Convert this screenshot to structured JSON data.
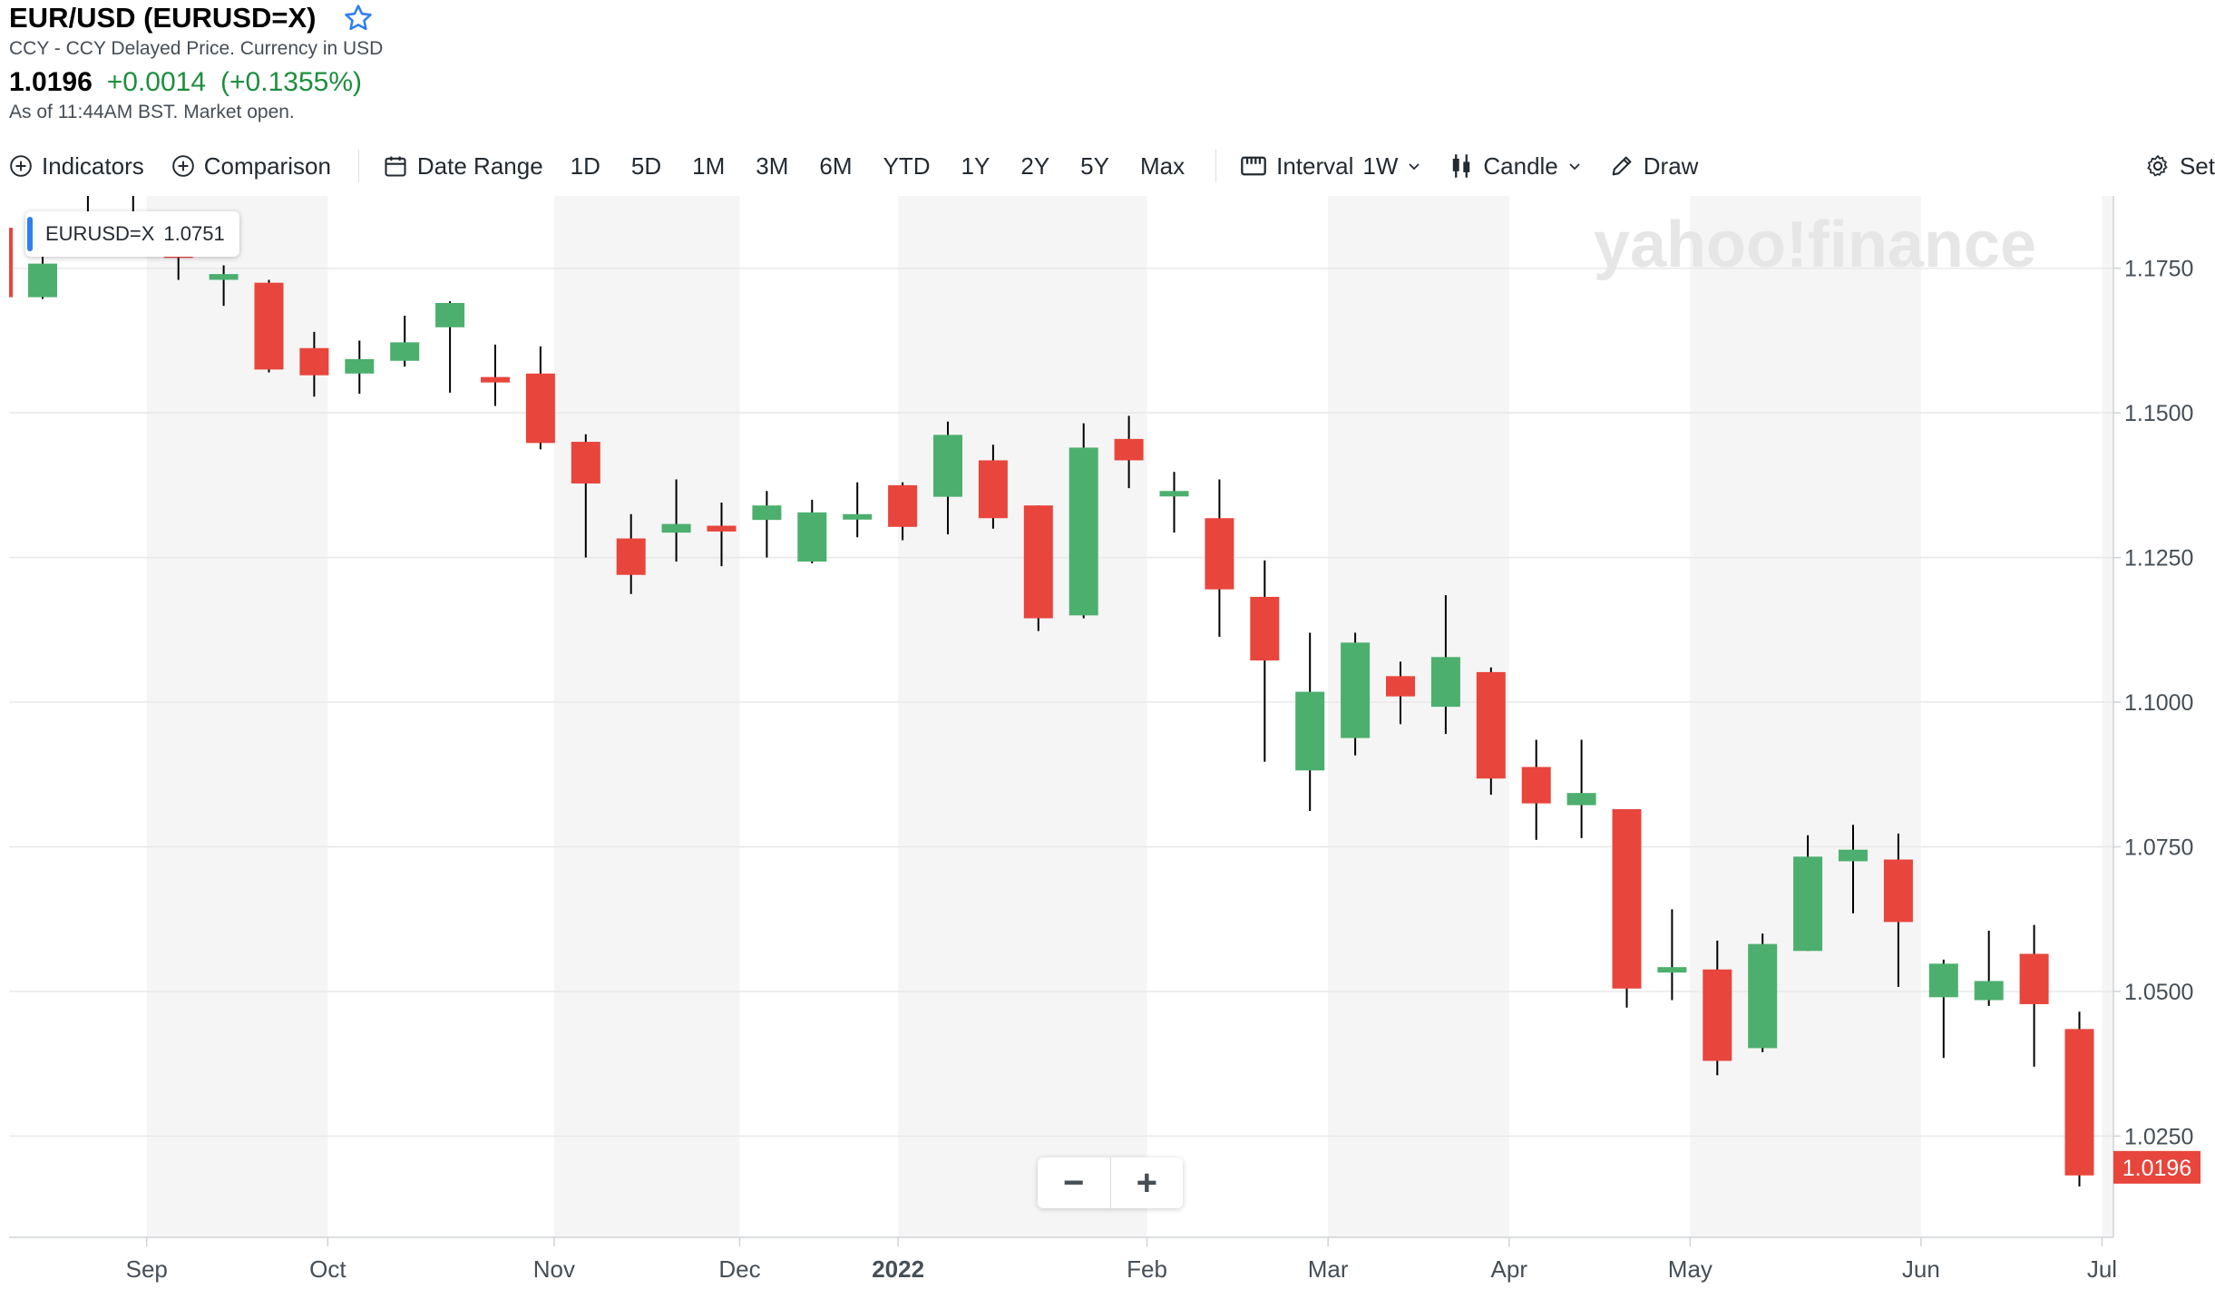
{
  "header": {
    "title": "EUR/USD (EURUSD=X)",
    "subtitle": "CCY - CCY Delayed Price. Currency in USD",
    "price": "1.0196",
    "change": "+0.0014",
    "change_pct": "(+0.1355%)",
    "as_of": "As of 11:44AM BST. Market open."
  },
  "toolbar": {
    "indicators": "Indicators",
    "comparison": "Comparison",
    "date_range": "Date Range",
    "ranges": [
      "1D",
      "5D",
      "1M",
      "3M",
      "6M",
      "YTD",
      "1Y",
      "2Y",
      "5Y",
      "Max"
    ],
    "interval_label": "Interval",
    "interval_value": "1W",
    "chart_type": "Candle",
    "draw": "Draw",
    "settings": "Set"
  },
  "tooltip": {
    "symbol": "EURUSD=X",
    "value": "1.0751"
  },
  "watermark": "yahoo!finance",
  "zoom": {
    "minus": "−",
    "plus": "+"
  },
  "colors": {
    "up": "#4caf6e",
    "down": "#e8453c",
    "grid": "#e8e8e8",
    "band": "#f5f5f5",
    "accent": "#2f7ef3"
  },
  "chart_data": {
    "type": "candlestick",
    "title": "EUR/USD (EURUSD=X)",
    "interval": "1W",
    "ylim": [
      1.0075,
      1.1875
    ],
    "y_ticks": [
      1.025,
      1.05,
      1.075,
      1.1,
      1.125,
      1.15,
      1.175
    ],
    "y_tick_labels": [
      "1.0250",
      "1.0500",
      "1.0750",
      "1.1000",
      "1.1250",
      "1.1500",
      "1.1750"
    ],
    "last_price_label": "1.0196",
    "last_price": 1.0196,
    "x_labels": [
      {
        "label": "Sep",
        "index": 2.3
      },
      {
        "label": "Oct",
        "index": 6.3
      },
      {
        "label": "Nov",
        "index": 11.3
      },
      {
        "label": "Dec",
        "index": 15.4
      },
      {
        "label": "2022",
        "index": 18.9
      },
      {
        "label": "Feb",
        "index": 24.4
      },
      {
        "label": "Mar",
        "index": 28.4
      },
      {
        "label": "Apr",
        "index": 32.4
      },
      {
        "label": "May",
        "index": 36.4
      },
      {
        "label": "Jun",
        "index": 41.5
      },
      {
        "label": "Jul",
        "index": 45.5
      }
    ],
    "month_bands": [
      [
        2.3,
        6.3
      ],
      [
        11.3,
        15.4
      ],
      [
        18.9,
        24.4
      ],
      [
        28.4,
        32.4
      ],
      [
        36.4,
        41.5
      ],
      [
        45.5,
        46.5
      ]
    ],
    "candles": [
      {
        "o": 1.17,
        "h": 1.1812,
        "l": 1.1697,
        "c": 1.1758
      },
      {
        "o": 1.181,
        "h": 1.1908,
        "l": 1.179,
        "c": 1.1838
      },
      {
        "o": 1.1838,
        "h": 1.19,
        "l": 1.181,
        "c": 1.183
      },
      {
        "o": 1.181,
        "h": 1.184,
        "l": 1.173,
        "c": 1.1768
      },
      {
        "o": 1.173,
        "h": 1.1755,
        "l": 1.1685,
        "c": 1.174
      },
      {
        "o": 1.1725,
        "h": 1.173,
        "l": 1.157,
        "c": 1.1575
      },
      {
        "o": 1.1612,
        "h": 1.164,
        "l": 1.1528,
        "c": 1.1565
      },
      {
        "o": 1.1568,
        "h": 1.1625,
        "l": 1.1533,
        "c": 1.1593
      },
      {
        "o": 1.159,
        "h": 1.1668,
        "l": 1.158,
        "c": 1.1622
      },
      {
        "o": 1.1648,
        "h": 1.1693,
        "l": 1.1535,
        "c": 1.169
      },
      {
        "o": 1.1562,
        "h": 1.1618,
        "l": 1.1512,
        "c": 1.1555
      },
      {
        "o": 1.1568,
        "h": 1.1615,
        "l": 1.1437,
        "c": 1.1448
      },
      {
        "o": 1.145,
        "h": 1.1463,
        "l": 1.125,
        "c": 1.1378
      },
      {
        "o": 1.1283,
        "h": 1.1325,
        "l": 1.1187,
        "c": 1.122
      },
      {
        "o": 1.1293,
        "h": 1.1385,
        "l": 1.1243,
        "c": 1.1308
      },
      {
        "o": 1.1305,
        "h": 1.1345,
        "l": 1.1235,
        "c": 1.1295
      },
      {
        "o": 1.1315,
        "h": 1.1365,
        "l": 1.125,
        "c": 1.134
      },
      {
        "o": 1.1243,
        "h": 1.135,
        "l": 1.124,
        "c": 1.1328
      },
      {
        "o": 1.1318,
        "h": 1.138,
        "l": 1.1285,
        "c": 1.1325
      },
      {
        "o": 1.1375,
        "h": 1.138,
        "l": 1.128,
        "c": 1.1303
      },
      {
        "o": 1.1355,
        "h": 1.1485,
        "l": 1.129,
        "c": 1.1462
      },
      {
        "o": 1.1418,
        "h": 1.1445,
        "l": 1.13,
        "c": 1.1318
      },
      {
        "o": 1.134,
        "h": 1.134,
        "l": 1.1123,
        "c": 1.1145
      },
      {
        "o": 1.115,
        "h": 1.1482,
        "l": 1.1145,
        "c": 1.144
      },
      {
        "o": 1.1455,
        "h": 1.1495,
        "l": 1.137,
        "c": 1.1418
      },
      {
        "o": 1.1358,
        "h": 1.1398,
        "l": 1.1293,
        "c": 1.1365
      },
      {
        "o": 1.1318,
        "h": 1.1385,
        "l": 1.1113,
        "c": 1.1195
      },
      {
        "o": 1.1182,
        "h": 1.1245,
        "l": 1.0897,
        "c": 1.1072
      },
      {
        "o": 1.0882,
        "h": 1.112,
        "l": 1.0812,
        "c": 1.1018
      },
      {
        "o": 1.0938,
        "h": 1.112,
        "l": 1.0908,
        "c": 1.1103
      },
      {
        "o": 1.1045,
        "h": 1.107,
        "l": 1.0962,
        "c": 1.101
      },
      {
        "o": 1.0992,
        "h": 1.1185,
        "l": 1.0945,
        "c": 1.1078
      },
      {
        "o": 1.1052,
        "h": 1.106,
        "l": 1.084,
        "c": 1.0868
      },
      {
        "o": 1.0888,
        "h": 1.0935,
        "l": 1.0762,
        "c": 1.0825
      },
      {
        "o": 1.0822,
        "h": 1.0935,
        "l": 1.0765,
        "c": 1.0843
      },
      {
        "o": 1.0815,
        "h": 1.0815,
        "l": 1.0472,
        "c": 1.0505
      },
      {
        "o": 1.0535,
        "h": 1.0642,
        "l": 1.0485,
        "c": 1.0542
      },
      {
        "o": 1.0538,
        "h": 1.0588,
        "l": 1.0355,
        "c": 1.038
      },
      {
        "o": 1.0402,
        "h": 1.06,
        "l": 1.0395,
        "c": 1.0582
      },
      {
        "o": 1.057,
        "h": 1.077,
        "l": 1.057,
        "c": 1.0733
      },
      {
        "o": 1.0725,
        "h": 1.0788,
        "l": 1.0635,
        "c": 1.0745
      },
      {
        "o": 1.0728,
        "h": 1.0773,
        "l": 1.0508,
        "c": 1.062
      },
      {
        "o": 1.049,
        "h": 1.0555,
        "l": 1.0385,
        "c": 1.0548
      },
      {
        "o": 1.0485,
        "h": 1.0605,
        "l": 1.0475,
        "c": 1.0518
      },
      {
        "o": 1.0565,
        "h": 1.0615,
        "l": 1.037,
        "c": 1.0478
      },
      {
        "o": 1.0435,
        "h": 1.0465,
        "l": 1.0163,
        "c": 1.0182
      }
    ]
  }
}
